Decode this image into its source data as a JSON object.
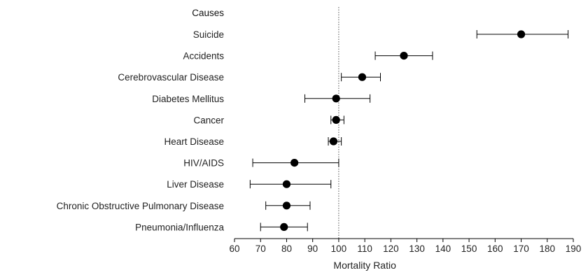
{
  "chart_data": {
    "type": "scatter",
    "subtype": "forest-plot",
    "y_header": "Causes",
    "xlabel": "Mortality Ratio",
    "xlim": [
      60,
      190
    ],
    "xticks": [
      60,
      70,
      80,
      90,
      100,
      110,
      120,
      130,
      140,
      150,
      160,
      170,
      180,
      190
    ],
    "reference_line": 100,
    "grid": false,
    "marker_color": "#000000",
    "line_color": "#000000",
    "rows": [
      {
        "cause": "Suicide",
        "estimate": 170,
        "lower": 153,
        "upper": 188
      },
      {
        "cause": "Accidents",
        "estimate": 125,
        "lower": 114,
        "upper": 136
      },
      {
        "cause": "Cerebrovascular Disease",
        "estimate": 109,
        "lower": 101,
        "upper": 116
      },
      {
        "cause": "Diabetes Mellitus",
        "estimate": 99,
        "lower": 87,
        "upper": 112
      },
      {
        "cause": "Cancer",
        "estimate": 99,
        "lower": 97,
        "upper": 102
      },
      {
        "cause": "Heart Disease",
        "estimate": 98,
        "lower": 96,
        "upper": 101
      },
      {
        "cause": "HIV/AIDS",
        "estimate": 83,
        "lower": 67,
        "upper": 100
      },
      {
        "cause": "Liver Disease",
        "estimate": 80,
        "lower": 66,
        "upper": 97
      },
      {
        "cause": "Chronic Obstructive Pulmonary Disease",
        "estimate": 80,
        "lower": 72,
        "upper": 89
      },
      {
        "cause": "Pneumonia/Influenza",
        "estimate": 79,
        "lower": 70,
        "upper": 88
      }
    ]
  }
}
